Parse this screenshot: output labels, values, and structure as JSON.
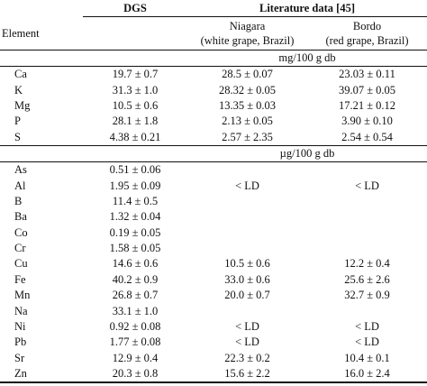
{
  "header": {
    "dgs": "DGS",
    "literature": "Literature data [45]",
    "element_col": "Element",
    "niagara_line1": "Niagara",
    "niagara_line2": "(white grape, Brazil)",
    "bordo_line1": "Bordo",
    "bordo_line2": "(red grape, Brazil)"
  },
  "sections": [
    {
      "unit": "mg/100 g db",
      "rows": [
        {
          "element": "Ca",
          "dgs": "19.7 ± 0.7",
          "niagara": "28.5 ± 0.07",
          "bordo": "23.03 ± 0.11"
        },
        {
          "element": "K",
          "dgs": "31.3 ± 1.0",
          "niagara": "28.32 ± 0.05",
          "bordo": "39.07 ± 0.05"
        },
        {
          "element": "Mg",
          "dgs": "10.5 ± 0.6",
          "niagara": "13.35 ± 0.03",
          "bordo": "17.21 ± 0.12"
        },
        {
          "element": "P",
          "dgs": "28.1 ± 1.8",
          "niagara": "2.13 ± 0.05",
          "bordo": "3.90 ± 0.10"
        },
        {
          "element": "S",
          "dgs": "4.38 ± 0.21",
          "niagara": "2.57 ± 2.35",
          "bordo": "2.54 ± 0.54"
        }
      ]
    },
    {
      "unit": "µg/100 g db",
      "rows": [
        {
          "element": "As",
          "dgs": "0.51 ± 0.06",
          "niagara": "",
          "bordo": ""
        },
        {
          "element": "Al",
          "dgs": "1.95 ± 0.09",
          "niagara": "< LD",
          "bordo": "< LD"
        },
        {
          "element": "B",
          "dgs": "11.4 ± 0.5",
          "niagara": "",
          "bordo": ""
        },
        {
          "element": "Ba",
          "dgs": "1.32 ± 0.04",
          "niagara": "",
          "bordo": ""
        },
        {
          "element": "Co",
          "dgs": "0.19 ± 0.05",
          "niagara": "",
          "bordo": ""
        },
        {
          "element": "Cr",
          "dgs": "1.58 ± 0.05",
          "niagara": "",
          "bordo": ""
        },
        {
          "element": "Cu",
          "dgs": "14.6 ± 0.6",
          "niagara": "10.5 ± 0.6",
          "bordo": "12.2 ± 0.4"
        },
        {
          "element": "Fe",
          "dgs": "40.2 ± 0.9",
          "niagara": "33.0 ± 0.6",
          "bordo": "25.6 ± 2.6"
        },
        {
          "element": "Mn",
          "dgs": "26.8 ± 0.7",
          "niagara": "20.0 ± 0.7",
          "bordo": "32.7 ± 0.9"
        },
        {
          "element": "Na",
          "dgs": "33.1 ± 1.0",
          "niagara": "",
          "bordo": ""
        },
        {
          "element": "Ni",
          "dgs": "0.92 ± 0.08",
          "niagara": "< LD",
          "bordo": "< LD"
        },
        {
          "element": "Pb",
          "dgs": "1.77 ± 0.08",
          "niagara": "< LD",
          "bordo": "< LD"
        },
        {
          "element": "Sr",
          "dgs": "12.9 ± 0.4",
          "niagara": "22.3 ± 0.2",
          "bordo": "10.4 ± 0.1"
        },
        {
          "element": "Zn",
          "dgs": "20.3 ± 0.8",
          "niagara": "15.6 ± 2.2",
          "bordo": "16.0 ± 2.4"
        }
      ]
    }
  ]
}
